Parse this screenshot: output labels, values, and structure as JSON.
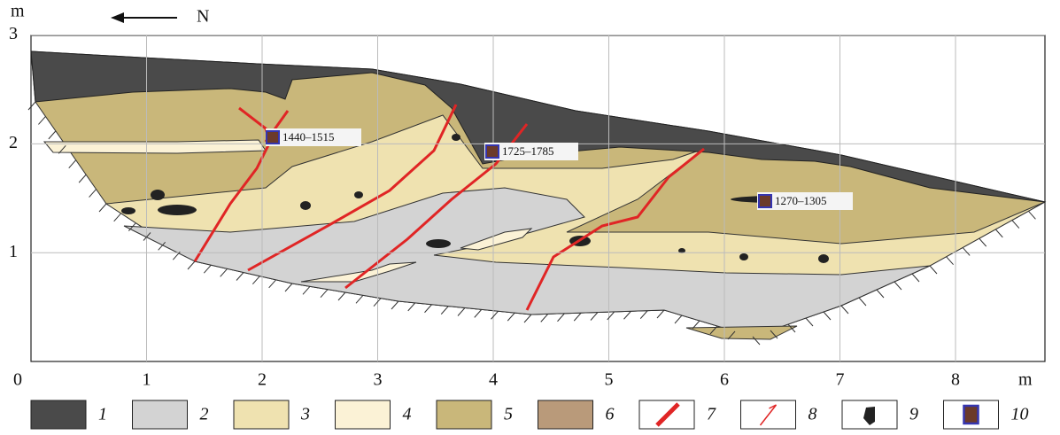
{
  "axes": {
    "x_unit": "m",
    "y_unit": "m",
    "x_ticks": [
      0,
      1,
      2,
      3,
      4,
      5,
      6,
      7,
      8
    ],
    "y_ticks": [
      1,
      2,
      3
    ]
  },
  "north_label": "N",
  "dates": [
    "1440–1515",
    "1725–1785",
    "1270–1305"
  ],
  "legend": [
    "1",
    "2",
    "3",
    "4",
    "5",
    "6",
    "7",
    "8",
    "9",
    "10"
  ]
}
